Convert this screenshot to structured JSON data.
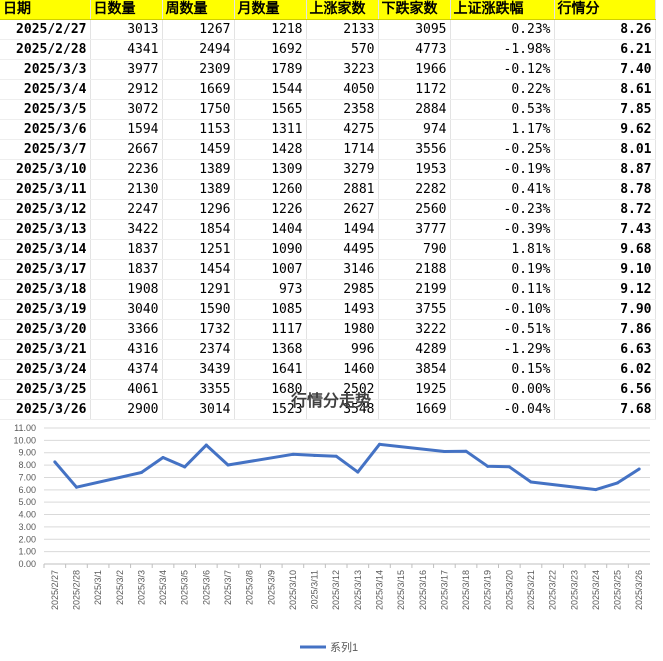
{
  "table": {
    "headers": [
      "日期",
      "日数量",
      "周数量",
      "月数量",
      "上涨家数",
      "下跌家数",
      "上证涨跌幅",
      "行情分"
    ],
    "rows": [
      [
        "2025/2/27",
        "3013",
        "1267",
        "1218",
        "2133",
        "3095",
        "0.23%",
        "8.26"
      ],
      [
        "2025/2/28",
        "4341",
        "2494",
        "1692",
        "570",
        "4773",
        "-1.98%",
        "6.21"
      ],
      [
        "2025/3/3",
        "3977",
        "2309",
        "1789",
        "3223",
        "1966",
        "-0.12%",
        "7.40"
      ],
      [
        "2025/3/4",
        "2912",
        "1669",
        "1544",
        "4050",
        "1172",
        "0.22%",
        "8.61"
      ],
      [
        "2025/3/5",
        "3072",
        "1750",
        "1565",
        "2358",
        "2884",
        "0.53%",
        "7.85"
      ],
      [
        "2025/3/6",
        "1594",
        "1153",
        "1311",
        "4275",
        "974",
        "1.17%",
        "9.62"
      ],
      [
        "2025/3/7",
        "2667",
        "1459",
        "1428",
        "1714",
        "3556",
        "-0.25%",
        "8.01"
      ],
      [
        "2025/3/10",
        "2236",
        "1389",
        "1309",
        "3279",
        "1953",
        "-0.19%",
        "8.87"
      ],
      [
        "2025/3/11",
        "2130",
        "1389",
        "1260",
        "2881",
        "2282",
        "0.41%",
        "8.78"
      ],
      [
        "2025/3/12",
        "2247",
        "1296",
        "1226",
        "2627",
        "2560",
        "-0.23%",
        "8.72"
      ],
      [
        "2025/3/13",
        "3422",
        "1854",
        "1404",
        "1494",
        "3777",
        "-0.39%",
        "7.43"
      ],
      [
        "2025/3/14",
        "1837",
        "1251",
        "1090",
        "4495",
        "790",
        "1.81%",
        "9.68"
      ],
      [
        "2025/3/17",
        "1837",
        "1454",
        "1007",
        "3146",
        "2188",
        "0.19%",
        "9.10"
      ],
      [
        "2025/3/18",
        "1908",
        "1291",
        "973",
        "2985",
        "2199",
        "0.11%",
        "9.12"
      ],
      [
        "2025/3/19",
        "3040",
        "1590",
        "1085",
        "1493",
        "3755",
        "-0.10%",
        "7.90"
      ],
      [
        "2025/3/20",
        "3366",
        "1732",
        "1117",
        "1980",
        "3222",
        "-0.51%",
        "7.86"
      ],
      [
        "2025/3/21",
        "4316",
        "2374",
        "1368",
        "996",
        "4289",
        "-1.29%",
        "6.63"
      ],
      [
        "2025/3/24",
        "4374",
        "3439",
        "1641",
        "1460",
        "3854",
        "0.15%",
        "6.02"
      ],
      [
        "2025/3/25",
        "4061",
        "3355",
        "1680",
        "2502",
        "1925",
        "0.00%",
        "6.56"
      ],
      [
        "2025/3/26",
        "2900",
        "3014",
        "1523",
        "3548",
        "1669",
        "-0.04%",
        "7.68"
      ]
    ]
  },
  "colors": {
    "header_bg": "#ffff00",
    "up": "#c00000",
    "down": "#00a040",
    "line": "#4472c4",
    "gridline": "#d9d9d9"
  },
  "chart_data": {
    "type": "line",
    "title": "行情分走势",
    "categories": [
      "2025/2/27",
      "2025/2/28",
      "2025/3/1",
      "2025/3/2",
      "2025/3/3",
      "2025/3/4",
      "2025/3/5",
      "2025/3/6",
      "2025/3/7",
      "2025/3/8",
      "2025/3/9",
      "2025/3/10",
      "2025/3/11",
      "2025/3/12",
      "2025/3/13",
      "2025/3/14",
      "2025/3/15",
      "2025/3/16",
      "2025/3/17",
      "2025/3/18",
      "2025/3/19",
      "2025/3/20",
      "2025/3/21",
      "2025/3/22",
      "2025/3/23",
      "2025/3/24",
      "2025/3/25",
      "2025/3/26"
    ],
    "series": [
      {
        "name": "系列1",
        "points": [
          [
            "2025/2/27",
            8.26
          ],
          [
            "2025/2/28",
            6.21
          ],
          [
            "2025/3/3",
            7.4
          ],
          [
            "2025/3/4",
            8.61
          ],
          [
            "2025/3/5",
            7.85
          ],
          [
            "2025/3/6",
            9.62
          ],
          [
            "2025/3/7",
            8.01
          ],
          [
            "2025/3/10",
            8.87
          ],
          [
            "2025/3/11",
            8.78
          ],
          [
            "2025/3/12",
            8.72
          ],
          [
            "2025/3/13",
            7.43
          ],
          [
            "2025/3/14",
            9.68
          ],
          [
            "2025/3/17",
            9.1
          ],
          [
            "2025/3/18",
            9.12
          ],
          [
            "2025/3/19",
            7.9
          ],
          [
            "2025/3/20",
            7.86
          ],
          [
            "2025/3/21",
            6.63
          ],
          [
            "2025/3/24",
            6.02
          ],
          [
            "2025/3/25",
            6.56
          ],
          [
            "2025/3/26",
            7.68
          ]
        ]
      }
    ],
    "yticks": [
      "0.00",
      "1.00",
      "2.00",
      "3.00",
      "4.00",
      "5.00",
      "6.00",
      "7.00",
      "8.00",
      "9.00",
      "10.00",
      "11.00"
    ],
    "ylim": [
      0,
      11
    ],
    "grid": true,
    "legend_position": "bottom"
  }
}
